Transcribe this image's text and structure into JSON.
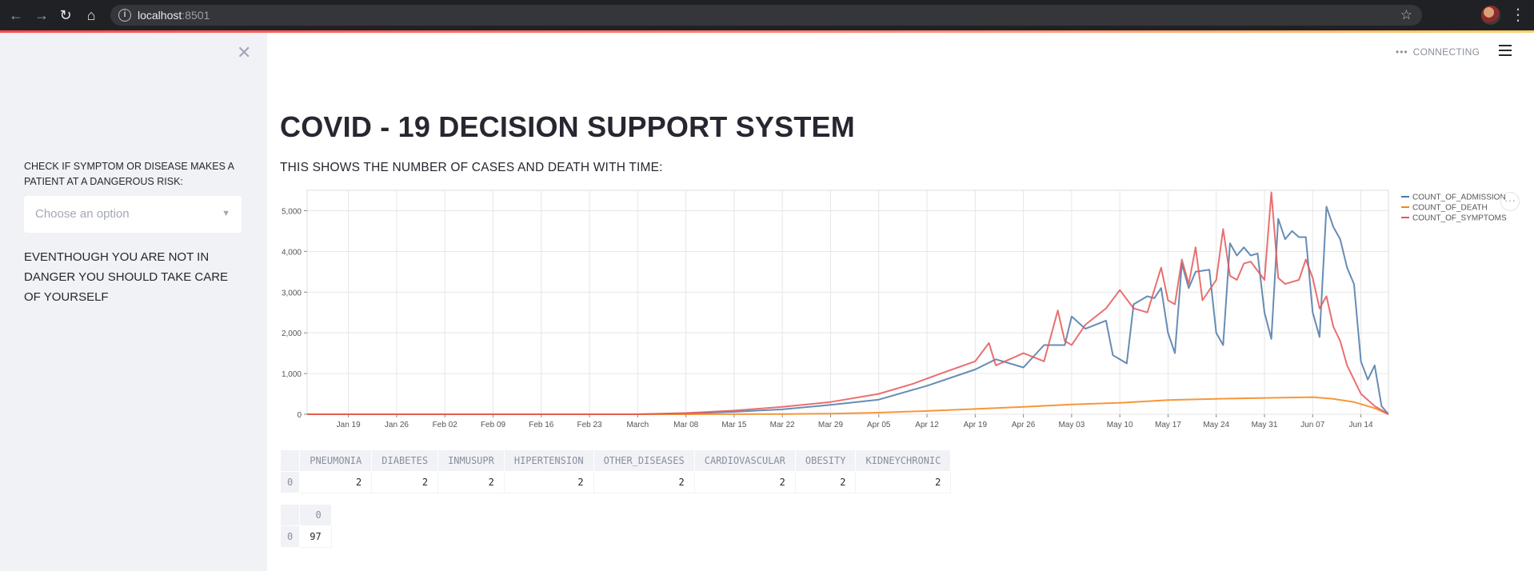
{
  "browser": {
    "url_host": "localhost",
    "url_port": ":8501",
    "icons": [
      "back-arrow-icon",
      "forward-arrow-icon",
      "reload-icon",
      "home-icon",
      "info-icon",
      "star-icon",
      "avatar",
      "kebab-menu-icon"
    ]
  },
  "sidebar": {
    "label": "CHECK IF SYMPTOM OR DISEASE MAKES A PATIENT AT A DANGEROUS RISK:",
    "select_placeholder": "Choose an option",
    "note": "EVENTHOUGH YOU ARE NOT IN DANGER YOU SHOULD TAKE CARE OF YOURSELF"
  },
  "status": {
    "text": "CONNECTING"
  },
  "main": {
    "title": "COVID - 19 DECISION SUPPORT SYSTEM",
    "subtitle": "THIS SHOWS THE NUMBER OF CASES AND DEATH WITH TIME:"
  },
  "colors": {
    "admission": "#4c78a8",
    "death": "#f58518",
    "symptoms": "#e45756",
    "sidebar_bg": "#f0f2f6"
  },
  "chart_data": {
    "type": "line",
    "x_tick_labels": [
      "Jan 19",
      "Jan 26",
      "Feb 02",
      "Feb 09",
      "Feb 16",
      "Feb 23",
      "March",
      "Mar 08",
      "Mar 15",
      "Mar 22",
      "Mar 29",
      "Apr 05",
      "Apr 12",
      "Apr 19",
      "Apr 26",
      "May 03",
      "May 10",
      "May 17",
      "May 24",
      "May 31",
      "Jun 07",
      "Jun 14"
    ],
    "y_ticks": [
      0,
      1000,
      2000,
      3000,
      4000,
      5000
    ],
    "y_tick_labels": [
      "0",
      "1,000",
      "2,000",
      "3,000",
      "4,000",
      "5,000"
    ],
    "ylim": [
      0,
      5500
    ],
    "grid": true,
    "legend_position": "top-right",
    "series": [
      {
        "name": "COUNT_OF_ADMISSION",
        "points": [
          [
            "2020-01-13",
            0
          ],
          [
            "2020-03-01",
            0
          ],
          [
            "2020-03-08",
            20
          ],
          [
            "2020-03-15",
            60
          ],
          [
            "2020-03-22",
            120
          ],
          [
            "2020-03-29",
            230
          ],
          [
            "2020-04-05",
            360
          ],
          [
            "2020-04-12",
            700
          ],
          [
            "2020-04-19",
            1100
          ],
          [
            "2020-04-22",
            1350
          ],
          [
            "2020-04-26",
            1150
          ],
          [
            "2020-04-29",
            1700
          ],
          [
            "2020-05-02",
            1700
          ],
          [
            "2020-05-03",
            2400
          ],
          [
            "2020-05-05",
            2100
          ],
          [
            "2020-05-08",
            2300
          ],
          [
            "2020-05-09",
            1450
          ],
          [
            "2020-05-11",
            1250
          ],
          [
            "2020-05-12",
            2700
          ],
          [
            "2020-05-14",
            2900
          ],
          [
            "2020-05-15",
            2850
          ],
          [
            "2020-05-16",
            3100
          ],
          [
            "2020-05-17",
            2000
          ],
          [
            "2020-05-18",
            1500
          ],
          [
            "2020-05-19",
            3700
          ],
          [
            "2020-05-20",
            3100
          ],
          [
            "2020-05-21",
            3500
          ],
          [
            "2020-05-23",
            3550
          ],
          [
            "2020-05-24",
            2000
          ],
          [
            "2020-05-25",
            1700
          ],
          [
            "2020-05-26",
            4200
          ],
          [
            "2020-05-27",
            3900
          ],
          [
            "2020-05-28",
            4100
          ],
          [
            "2020-05-29",
            3900
          ],
          [
            "2020-05-30",
            3950
          ],
          [
            "2020-05-31",
            2500
          ],
          [
            "2020-06-01",
            1850
          ],
          [
            "2020-06-02",
            4800
          ],
          [
            "2020-06-03",
            4300
          ],
          [
            "2020-06-04",
            4500
          ],
          [
            "2020-06-05",
            4350
          ],
          [
            "2020-06-06",
            4350
          ],
          [
            "2020-06-07",
            2500
          ],
          [
            "2020-06-08",
            1900
          ],
          [
            "2020-06-09",
            5100
          ],
          [
            "2020-06-10",
            4600
          ],
          [
            "2020-06-11",
            4300
          ],
          [
            "2020-06-12",
            3600
          ],
          [
            "2020-06-13",
            3200
          ],
          [
            "2020-06-14",
            1300
          ],
          [
            "2020-06-15",
            850
          ],
          [
            "2020-06-16",
            1200
          ],
          [
            "2020-06-17",
            200
          ],
          [
            "2020-06-18",
            0
          ]
        ]
      },
      {
        "name": "COUNT_OF_DEATH",
        "points": [
          [
            "2020-01-13",
            0
          ],
          [
            "2020-03-08",
            0
          ],
          [
            "2020-03-22",
            5
          ],
          [
            "2020-03-29",
            15
          ],
          [
            "2020-04-05",
            40
          ],
          [
            "2020-04-12",
            80
          ],
          [
            "2020-04-19",
            130
          ],
          [
            "2020-04-26",
            180
          ],
          [
            "2020-05-03",
            240
          ],
          [
            "2020-05-10",
            280
          ],
          [
            "2020-05-17",
            350
          ],
          [
            "2020-05-24",
            380
          ],
          [
            "2020-05-31",
            400
          ],
          [
            "2020-06-07",
            420
          ],
          [
            "2020-06-10",
            380
          ],
          [
            "2020-06-13",
            300
          ],
          [
            "2020-06-16",
            150
          ],
          [
            "2020-06-18",
            0
          ]
        ]
      },
      {
        "name": "COUNT_OF_SYMPTOMS",
        "points": [
          [
            "2020-01-13",
            0
          ],
          [
            "2020-03-01",
            0
          ],
          [
            "2020-03-08",
            30
          ],
          [
            "2020-03-15",
            90
          ],
          [
            "2020-03-22",
            180
          ],
          [
            "2020-03-29",
            300
          ],
          [
            "2020-04-05",
            500
          ],
          [
            "2020-04-10",
            750
          ],
          [
            "2020-04-14",
            1000
          ],
          [
            "2020-04-19",
            1300
          ],
          [
            "2020-04-21",
            1750
          ],
          [
            "2020-04-22",
            1200
          ],
          [
            "2020-04-26",
            1500
          ],
          [
            "2020-04-29",
            1300
          ],
          [
            "2020-05-01",
            2550
          ],
          [
            "2020-05-02",
            1800
          ],
          [
            "2020-05-03",
            1700
          ],
          [
            "2020-05-05",
            2200
          ],
          [
            "2020-05-08",
            2600
          ],
          [
            "2020-05-10",
            3050
          ],
          [
            "2020-05-12",
            2600
          ],
          [
            "2020-05-14",
            2500
          ],
          [
            "2020-05-16",
            3600
          ],
          [
            "2020-05-17",
            2800
          ],
          [
            "2020-05-18",
            2700
          ],
          [
            "2020-05-19",
            3800
          ],
          [
            "2020-05-20",
            3200
          ],
          [
            "2020-05-21",
            4100
          ],
          [
            "2020-05-22",
            2800
          ],
          [
            "2020-05-24",
            3300
          ],
          [
            "2020-05-25",
            4550
          ],
          [
            "2020-05-26",
            3400
          ],
          [
            "2020-05-27",
            3300
          ],
          [
            "2020-05-28",
            3700
          ],
          [
            "2020-05-29",
            3750
          ],
          [
            "2020-05-31",
            3300
          ],
          [
            "2020-06-01",
            5450
          ],
          [
            "2020-06-02",
            3350
          ],
          [
            "2020-06-03",
            3200
          ],
          [
            "2020-06-05",
            3300
          ],
          [
            "2020-06-06",
            3800
          ],
          [
            "2020-06-07",
            3350
          ],
          [
            "2020-06-08",
            2600
          ],
          [
            "2020-06-09",
            2900
          ],
          [
            "2020-06-10",
            2150
          ],
          [
            "2020-06-11",
            1800
          ],
          [
            "2020-06-12",
            1200
          ],
          [
            "2020-06-14",
            500
          ],
          [
            "2020-06-16",
            200
          ],
          [
            "2020-06-18",
            0
          ]
        ]
      }
    ]
  },
  "table1": {
    "columns": [
      "PNEUMONIA",
      "DIABETES",
      "INMUSUPR",
      "HIPERTENSION",
      "OTHER_DISEASES",
      "CARDIOVASCULAR",
      "OBESITY",
      "KIDNEYCHRONIC"
    ],
    "index": "0",
    "values": [
      "2",
      "2",
      "2",
      "2",
      "2",
      "2",
      "2",
      "2"
    ]
  },
  "table2": {
    "column": "0",
    "index": "0",
    "value": "97"
  }
}
